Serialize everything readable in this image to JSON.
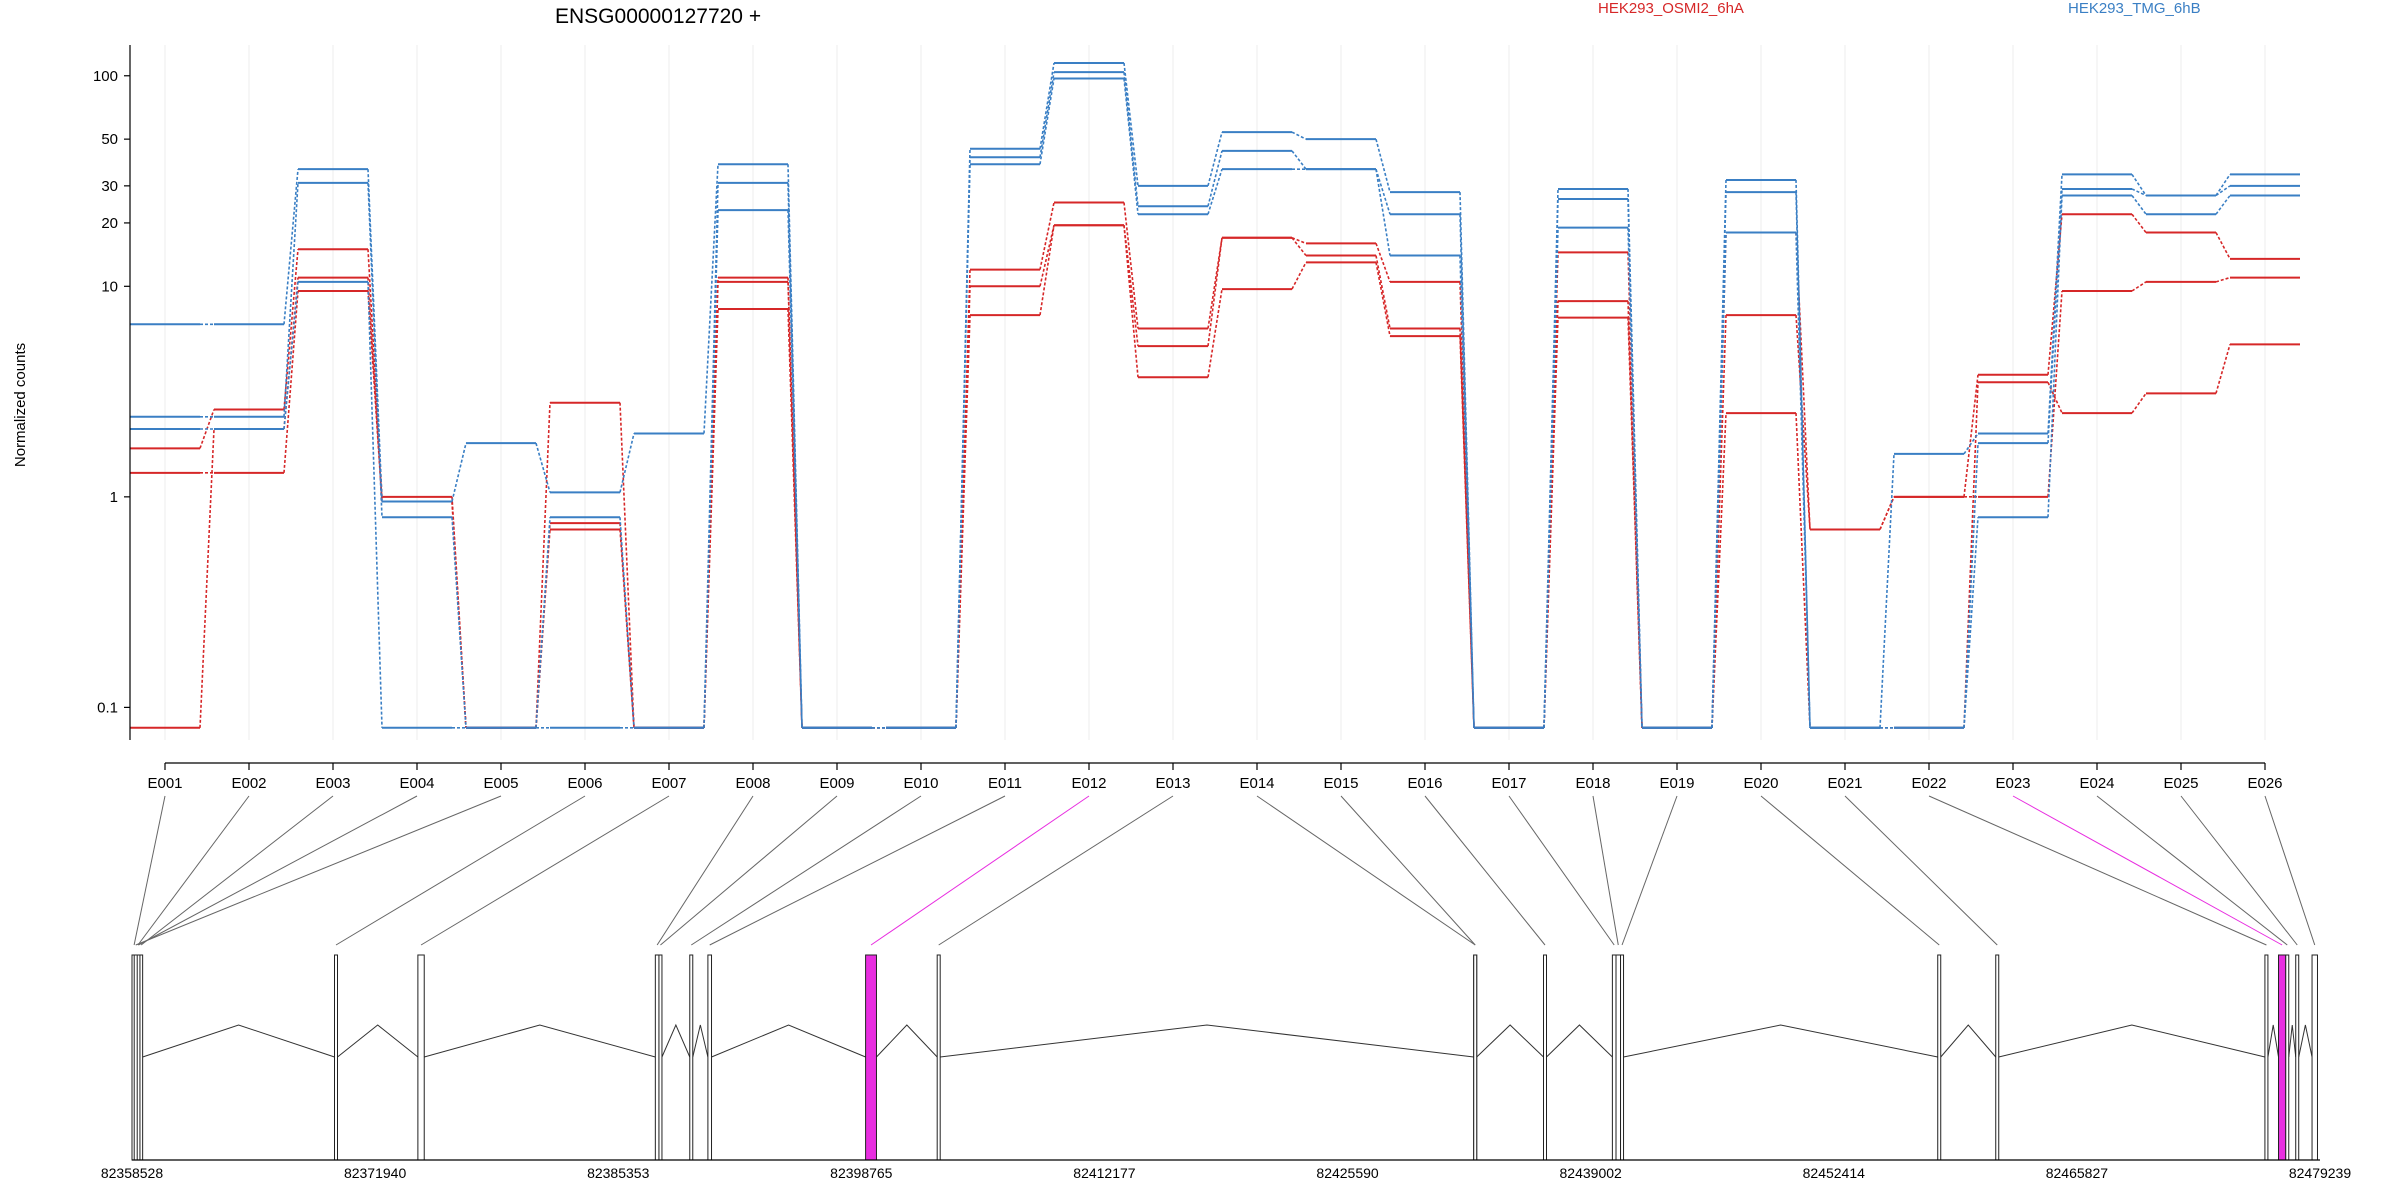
{
  "chart_data": {
    "type": "line",
    "title": "ENSG00000127720 +",
    "ylabel": "Normalized counts",
    "yscale": "log",
    "ylim": [
      0.07,
      140
    ],
    "yticks": [
      {
        "v": 100,
        "label": "100"
      },
      {
        "v": 50,
        "label": "50"
      },
      {
        "v": 30,
        "label": "30"
      },
      {
        "v": 20,
        "label": "20"
      },
      {
        "v": 10,
        "label": "10"
      },
      {
        "v": 1,
        "label": "1"
      },
      {
        "v": 0.1,
        "label": "0.1"
      }
    ],
    "categories": [
      "E001",
      "E002",
      "E003",
      "E004",
      "E005",
      "E006",
      "E007",
      "E008",
      "E009",
      "E010",
      "E011",
      "E012",
      "E013",
      "E014",
      "E015",
      "E016",
      "E017",
      "E018",
      "E019",
      "E020",
      "E021",
      "E022",
      "E023",
      "E024",
      "E025",
      "E026"
    ],
    "legend": [
      {
        "name": "HEK293_OSMI2_6hA",
        "color": "#d62728"
      },
      {
        "name": "HEK293_TMG_6hB",
        "color": "#3a7fc4"
      }
    ],
    "series": [
      {
        "group": "HEK293_OSMI2_6hA",
        "color": "#d62728",
        "values": [
          1.7,
          2.6,
          15,
          1.0,
          0.08,
          2.8,
          0.08,
          11,
          0.08,
          0.08,
          12,
          25,
          6.3,
          17,
          16,
          10.5,
          0.08,
          14.5,
          0.08,
          18,
          0.7,
          1.0,
          3.8,
          22,
          18,
          13.5
        ]
      },
      {
        "group": "HEK293_OSMI2_6hA",
        "color": "#d62728",
        "values": [
          0.08,
          2.1,
          11,
          0.95,
          0.08,
          0.7,
          0.08,
          10.5,
          0.08,
          0.08,
          10,
          19.5,
          5.2,
          17,
          14,
          6.3,
          0.08,
          8.5,
          0.08,
          7.3,
          0.7,
          1.0,
          1.0,
          9.5,
          10.5,
          11
        ]
      },
      {
        "group": "HEK293_OSMI2_6hA",
        "color": "#d62728",
        "values": [
          1.3,
          1.3,
          9.5,
          0.95,
          0.08,
          0.75,
          0.08,
          7.8,
          0.08,
          0.08,
          7.3,
          19.5,
          3.7,
          9.7,
          13,
          5.8,
          0.08,
          7.1,
          0.08,
          2.5,
          0.08,
          0.08,
          3.5,
          2.5,
          3.1,
          5.3
        ]
      },
      {
        "group": "HEK293_TMG_6hB",
        "color": "#3a7fc4",
        "values": [
          6.6,
          6.6,
          36,
          0.95,
          1.8,
          1.05,
          2.0,
          38,
          0.08,
          0.08,
          45,
          115,
          30,
          54,
          50,
          28,
          0.08,
          29,
          0.08,
          32,
          0.08,
          1.6,
          2.0,
          34,
          27,
          34
        ]
      },
      {
        "group": "HEK293_TMG_6hB",
        "color": "#3a7fc4",
        "values": [
          2.4,
          2.4,
          31,
          0.8,
          0.08,
          0.8,
          0.08,
          31,
          0.08,
          0.08,
          41,
          104,
          24,
          44,
          36,
          22,
          0.08,
          26,
          0.08,
          28,
          0.08,
          0.08,
          1.8,
          29,
          27,
          30
        ]
      },
      {
        "group": "HEK293_TMG_6hB",
        "color": "#3a7fc4",
        "values": [
          2.1,
          2.1,
          10.5,
          0.08,
          0.08,
          0.08,
          0.08,
          23,
          0.08,
          0.08,
          38,
          97,
          22,
          36,
          36,
          14,
          0.08,
          19,
          0.08,
          18,
          0.08,
          0.08,
          0.8,
          27,
          22,
          27
        ]
      }
    ],
    "genomic_axis": {
      "ticks": [
        "82358528",
        "82371940",
        "82385353",
        "82398765",
        "82412177",
        "82425590",
        "82439002",
        "82452414",
        "82465827",
        "82479239"
      ],
      "range": [
        82358528,
        82479239
      ]
    },
    "exons": [
      {
        "id": "E001",
        "start": 82358528,
        "end": 82358760,
        "highlight": false
      },
      {
        "id": "E002",
        "start": 82358760,
        "end": 82358950,
        "highlight": false
      },
      {
        "id": "E003",
        "start": 82358950,
        "end": 82359080,
        "highlight": false
      },
      {
        "id": "E004",
        "start": 82358800,
        "end": 82358900,
        "highlight": false
      },
      {
        "id": "E005",
        "start": 82358650,
        "end": 82358750,
        "highlight": false
      },
      {
        "id": "E006",
        "start": 82369700,
        "end": 82369850,
        "highlight": false
      },
      {
        "id": "E007",
        "start": 82374300,
        "end": 82374650,
        "highlight": false
      },
      {
        "id": "E008",
        "start": 82387400,
        "end": 82387600,
        "highlight": false
      },
      {
        "id": "E009",
        "start": 82387600,
        "end": 82387700,
        "highlight": false
      },
      {
        "id": "E010",
        "start": 82389300,
        "end": 82389450,
        "highlight": false
      },
      {
        "id": "E011",
        "start": 82390300,
        "end": 82390500,
        "highlight": false
      },
      {
        "id": "E012",
        "start": 82399000,
        "end": 82399600,
        "highlight": true
      },
      {
        "id": "E013",
        "start": 82402950,
        "end": 82403100,
        "highlight": false
      },
      {
        "id": "E014",
        "start": 82432550,
        "end": 82432700,
        "highlight": false
      },
      {
        "id": "E015",
        "start": 82432550,
        "end": 82432700,
        "highlight": false
      },
      {
        "id": "E016",
        "start": 82436400,
        "end": 82436550,
        "highlight": false
      },
      {
        "id": "E017",
        "start": 82440200,
        "end": 82440400,
        "highlight": false
      },
      {
        "id": "E018",
        "start": 82440400,
        "end": 82440650,
        "highlight": false
      },
      {
        "id": "E019",
        "start": 82440650,
        "end": 82440750,
        "highlight": false
      },
      {
        "id": "E020",
        "start": 82458150,
        "end": 82458300,
        "highlight": false
      },
      {
        "id": "E021",
        "start": 82461350,
        "end": 82461500,
        "highlight": false
      },
      {
        "id": "E022",
        "start": 82476200,
        "end": 82476350,
        "highlight": false
      },
      {
        "id": "E023",
        "start": 82476950,
        "end": 82477350,
        "highlight": true
      },
      {
        "id": "E024",
        "start": 82477350,
        "end": 82477450,
        "highlight": false
      },
      {
        "id": "E025",
        "start": 82477900,
        "end": 82478050,
        "highlight": false
      },
      {
        "id": "E026",
        "start": 82478800,
        "end": 82479100,
        "highlight": false
      }
    ],
    "highlight_color": "#e82ee0",
    "grid": true
  }
}
